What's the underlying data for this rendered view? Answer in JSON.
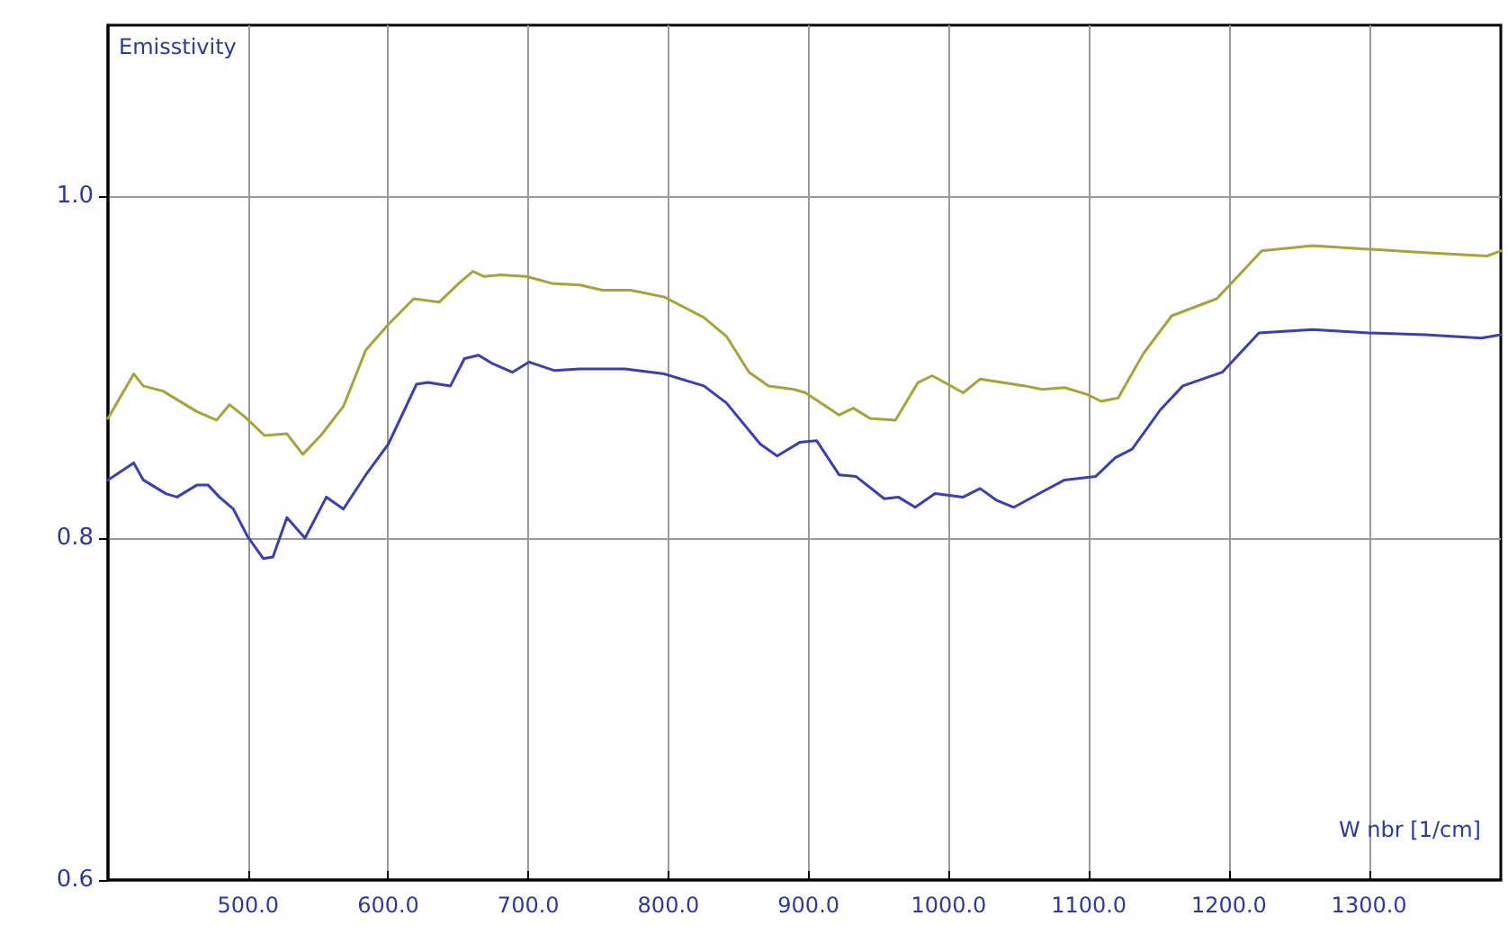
{
  "chart_data": {
    "type": "line",
    "xlabel": "W nbr [1/cm]",
    "ylabel": "Emisstivity",
    "xlim": [
      400,
      1394
    ],
    "ylim": [
      0.6,
      1.1
    ],
    "xticks": [
      {
        "value": 500,
        "label": "500.0"
      },
      {
        "value": 600,
        "label": "600.0"
      },
      {
        "value": 700,
        "label": "700.0"
      },
      {
        "value": 800,
        "label": "800.0"
      },
      {
        "value": 900,
        "label": "900.0"
      },
      {
        "value": 1000,
        "label": "1000.0"
      },
      {
        "value": 1100,
        "label": "1100.0"
      },
      {
        "value": 1200,
        "label": "1200.0"
      },
      {
        "value": 1300,
        "label": "1300.0"
      }
    ],
    "yticks": [
      {
        "value": 0.6,
        "label": "0.6"
      },
      {
        "value": 0.8,
        "label": "0.8"
      },
      {
        "value": 1.0,
        "label": "1.0"
      }
    ],
    "grid": true,
    "marker": "none",
    "line_style": "solid",
    "series": [
      {
        "color": "#a8a23a",
        "x": [
          400,
          418.4,
          425.2,
          439.3,
          449.3,
          463.4,
          477.5,
          486.7,
          497.6,
          511.7,
          527.7,
          539.0,
          551.9,
          568.0,
          584.0,
          600.1,
          618.2,
          636.3,
          650.4,
          660.4,
          668.5,
          680.5,
          698.6,
          716.7,
          736.8,
          752.9,
          773.0,
          797.1,
          825.3,
          841.4,
          857.5,
          871.5,
          889.6,
          897.7,
          921.8,
          931.9,
          943.9,
          962.0,
          978.1,
          988.2,
          1010.3,
          1022.4,
          1054.5,
          1066.6,
          1082.7,
          1098.8,
          1108.8,
          1120.9,
          1139.0,
          1159.1,
          1191.2,
          1199.3,
          1223.4,
          1259.6,
          1299.8,
          1340.0,
          1384.2,
          1393.9
        ],
        "values": [
          0.87,
          0.896,
          0.889,
          0.886,
          0.881,
          0.874,
          0.869,
          0.878,
          0.871,
          0.86,
          0.861,
          0.849,
          0.86,
          0.877,
          0.91,
          0.925,
          0.94,
          0.938,
          0.949,
          0.956,
          0.953,
          0.954,
          0.953,
          0.949,
          0.948,
          0.945,
          0.945,
          0.941,
          0.929,
          0.918,
          0.897,
          0.889,
          0.887,
          0.885,
          0.872,
          0.876,
          0.87,
          0.869,
          0.891,
          0.895,
          0.885,
          0.893,
          0.889,
          0.887,
          0.888,
          0.884,
          0.88,
          0.882,
          0.908,
          0.93,
          0.94,
          0.947,
          0.968,
          0.971,
          0.969,
          0.967,
          0.965,
          0.968
        ]
      },
      {
        "color": "#3a40b0",
        "x": [
          400,
          418.4,
          425.2,
          441.3,
          449.3,
          463.4,
          471.5,
          479.5,
          489.5,
          499.6,
          510.9,
          517.7,
          527.7,
          540.6,
          555.9,
          568.0,
          584.0,
          600.1,
          620.2,
          628.3,
          644.4,
          654.4,
          664.5,
          674.5,
          688.6,
          700.6,
          718.7,
          736.8,
          769.0,
          797.1,
          825.3,
          841.4,
          865.5,
          877.6,
          893.7,
          905.7,
          921.8,
          933.9,
          954.0,
          964.0,
          976.1,
          990.2,
          1010.3,
          1022.4,
          1034.4,
          1046.5,
          1066.6,
          1082.7,
          1104.8,
          1118.9,
          1130.9,
          1151.0,
          1167.1,
          1195.2,
          1221.4,
          1259.6,
          1299.8,
          1340.0,
          1380.2,
          1393.9
        ],
        "values": [
          0.834,
          0.844,
          0.834,
          0.826,
          0.824,
          0.831,
          0.831,
          0.824,
          0.817,
          0.801,
          0.788,
          0.789,
          0.812,
          0.8,
          0.824,
          0.817,
          0.837,
          0.855,
          0.89,
          0.891,
          0.889,
          0.905,
          0.907,
          0.902,
          0.897,
          0.903,
          0.898,
          0.899,
          0.899,
          0.896,
          0.889,
          0.879,
          0.855,
          0.848,
          0.856,
          0.857,
          0.837,
          0.836,
          0.823,
          0.824,
          0.818,
          0.826,
          0.824,
          0.829,
          0.822,
          0.818,
          0.827,
          0.834,
          0.836,
          0.847,
          0.852,
          0.875,
          0.889,
          0.897,
          0.92,
          0.922,
          0.92,
          0.919,
          0.917,
          0.919
        ]
      }
    ]
  }
}
